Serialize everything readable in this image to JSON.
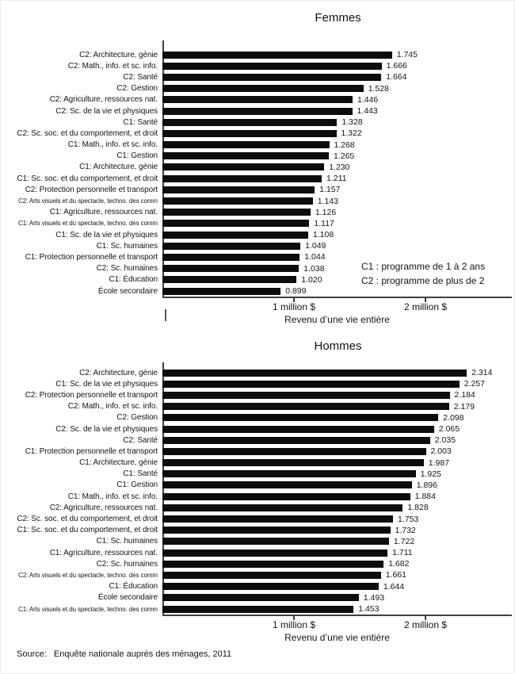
{
  "page": {
    "background": "#ffffff",
    "bar_color": "#0d0d0d",
    "axis_color": "#3f3f3f"
  },
  "chart_data": [
    {
      "type": "bar",
      "orientation": "horizontal",
      "title": "Femmes",
      "xlabel": "Revenu d’une vie entière",
      "xlim": [
        0,
        2.65
      ],
      "x_ticks": [
        {
          "value": 1,
          "label": "1 million $"
        },
        {
          "value": 2,
          "label": "2 million $"
        }
      ],
      "legend": [
        "C1 : programme de 1 à 2 ans",
        "C2 : programme de plus de 2"
      ],
      "legend_position": "lower-right",
      "categories": [
        "C2: Architecture, génie",
        "C2: Math., info. et sc. info.",
        "C2: Santé",
        "C2: Gestion",
        "C2: Agriculture, ressources nat.",
        "C2: Sc. de la vie et physiques",
        "C1: Santé",
        "C2: Sc. soc. et du comportement, et droit",
        "C1: Math., info. et sc. info.",
        "C1: Gestion",
        "C1: Architecture, génie",
        "C1: Sc. soc. et du comportement, et droit",
        "C2: Protection personnelle et transport",
        "C2: Arts visuels et du spectacle, techno. des comm",
        "C1: Agriculture, ressources nat.",
        "C1: Arts visuels et du spectacle, techno. des comm",
        "C1: Sc. de la vie et physiques",
        "C1: Sc. humaines",
        "C1: Protection personnelle et transport",
        "C2: Sc. humaines",
        "C1: Éducation",
        "École secondaire"
      ],
      "values": [
        1.745,
        1.666,
        1.664,
        1.528,
        1.446,
        1.443,
        1.328,
        1.322,
        1.268,
        1.265,
        1.23,
        1.211,
        1.157,
        1.143,
        1.126,
        1.117,
        1.108,
        1.049,
        1.044,
        1.038,
        1.02,
        0.899
      ]
    },
    {
      "type": "bar",
      "orientation": "horizontal",
      "title": "Hommes",
      "xlabel": "Revenu d’une vie entière",
      "xlim": [
        0,
        2.65
      ],
      "x_ticks": [
        {
          "value": 1,
          "label": "1 million $"
        },
        {
          "value": 2,
          "label": "2 million $"
        }
      ],
      "categories": [
        "C2: Architecture, génie",
        "C1: Sc. de la vie et physiques",
        "C2: Protection personnelle et transport",
        "C2: Math., info. et sc. info.",
        "C2: Gestion",
        "C2: Sc. de la vie et physiques",
        "C2: Santé",
        "C1: Protection personnelle et transport",
        "C1: Architecture, génie",
        "C1: Santé",
        "C1: Gestion",
        "C1: Math., info. et sc. info.",
        "C2: Agriculture, ressources nat.",
        "C2: Sc. soc. et du comportement, et droit",
        "C1: Sc. soc. et du comportement, et droit",
        "C1: Sc. humaines",
        "C1: Agriculture, ressources nat.",
        "C2: Sc. humaines",
        "C2: Arts visuels et du spectacle, techno. des comm",
        "C1: Éducation",
        "École secondaire",
        "C1: Arts visuels et du spectacle, techno. des comm"
      ],
      "values": [
        2.314,
        2.257,
        2.184,
        2.179,
        2.098,
        2.065,
        2.035,
        2.003,
        1.987,
        1.925,
        1.896,
        1.884,
        1.828,
        1.753,
        1.732,
        1.722,
        1.711,
        1.682,
        1.661,
        1.644,
        1.493,
        1.453
      ]
    }
  ],
  "source": {
    "label": "Source:",
    "text": "Enquête nationale auprès des ménages, 2011"
  }
}
